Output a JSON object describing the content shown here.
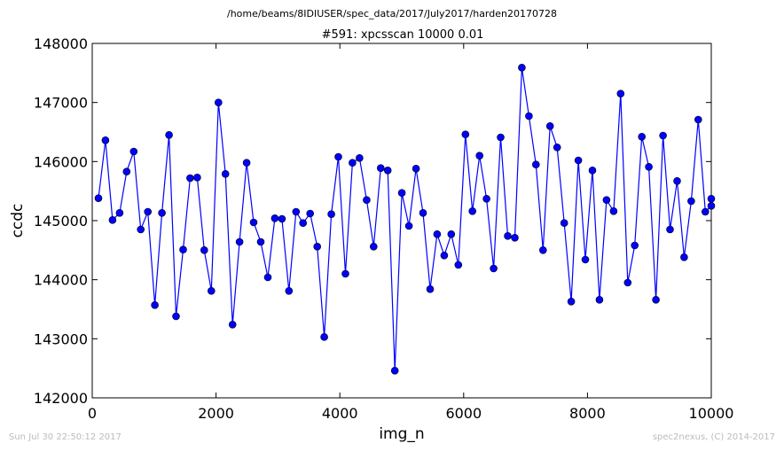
{
  "figure": {
    "suptitle": "/home/beams/8IDIUSER/spec_data/2017/July2017/harden20170728",
    "footer_left": "Sun Jul 30 22:50:12 2017",
    "footer_right": "spec2nexus, (C) 2014-2017",
    "line_color": "#0000ff",
    "marker_color": "#0000ff"
  },
  "chart_data": {
    "type": "line",
    "title": "#591: xpcsscan 10000 0.01",
    "xlabel": "img_n",
    "ylabel": "ccdc",
    "xlim": [
      0,
      10000
    ],
    "ylim": [
      142000,
      148000
    ],
    "xticks": [
      0,
      2000,
      4000,
      6000,
      8000,
      10000
    ],
    "yticks": [
      142000,
      143000,
      144000,
      145000,
      146000,
      147000,
      148000
    ],
    "grid": false,
    "series": [
      {
        "x": [
          100,
          214,
          328,
          442,
          556,
          670,
          784,
          898,
          1012,
          1126,
          1240,
          1354,
          1468,
          1582,
          1696,
          1810,
          1924,
          2038,
          2152,
          2266,
          2380,
          2494,
          2608,
          2722,
          2836,
          2950,
          3064,
          3178,
          3292,
          3406,
          3520,
          3634,
          3748,
          3862,
          3976,
          4090,
          4204,
          4318,
          4432,
          4546,
          4660,
          4774,
          4888,
          5002,
          5116,
          5230,
          5344,
          5458,
          5572,
          5686,
          5800,
          5914,
          6028,
          6142,
          6256,
          6370,
          6484,
          6598,
          6712,
          6826,
          6940,
          7054,
          7168,
          7282,
          7396,
          7510,
          7624,
          7738,
          7852,
          7966,
          8080,
          8194,
          8308,
          8422,
          8536,
          8650,
          8764,
          8878,
          8992,
          9106,
          9220,
          9334,
          9448,
          9562,
          9676,
          9790,
          9904,
          10000,
          10000
        ],
        "y": [
          145380,
          146360,
          145010,
          145130,
          145830,
          146170,
          144850,
          145150,
          143570,
          145130,
          146450,
          143380,
          144510,
          145720,
          145730,
          144500,
          143810,
          147000,
          145790,
          143240,
          144640,
          145980,
          144970,
          144640,
          144040,
          145040,
          145030,
          143810,
          145150,
          144960,
          145120,
          144560,
          143030,
          145110,
          146080,
          144100,
          145980,
          146060,
          145350,
          144560,
          145890,
          145850,
          142460,
          145470,
          144910,
          145880,
          145130,
          143840,
          144770,
          144410,
          144770,
          144250,
          146460,
          145160,
          146100,
          145370,
          144190,
          146410,
          144740,
          144710,
          147590,
          146770,
          145950,
          144500,
          146600,
          146240,
          144960,
          143630,
          146020,
          144340,
          145850,
          143660,
          145350,
          145160,
          147150,
          143950,
          144580,
          146420,
          145910,
          143660,
          146440,
          144850,
          145670,
          144380,
          145330,
          146710,
          145150,
          145250,
          145370
        ]
      }
    ]
  }
}
